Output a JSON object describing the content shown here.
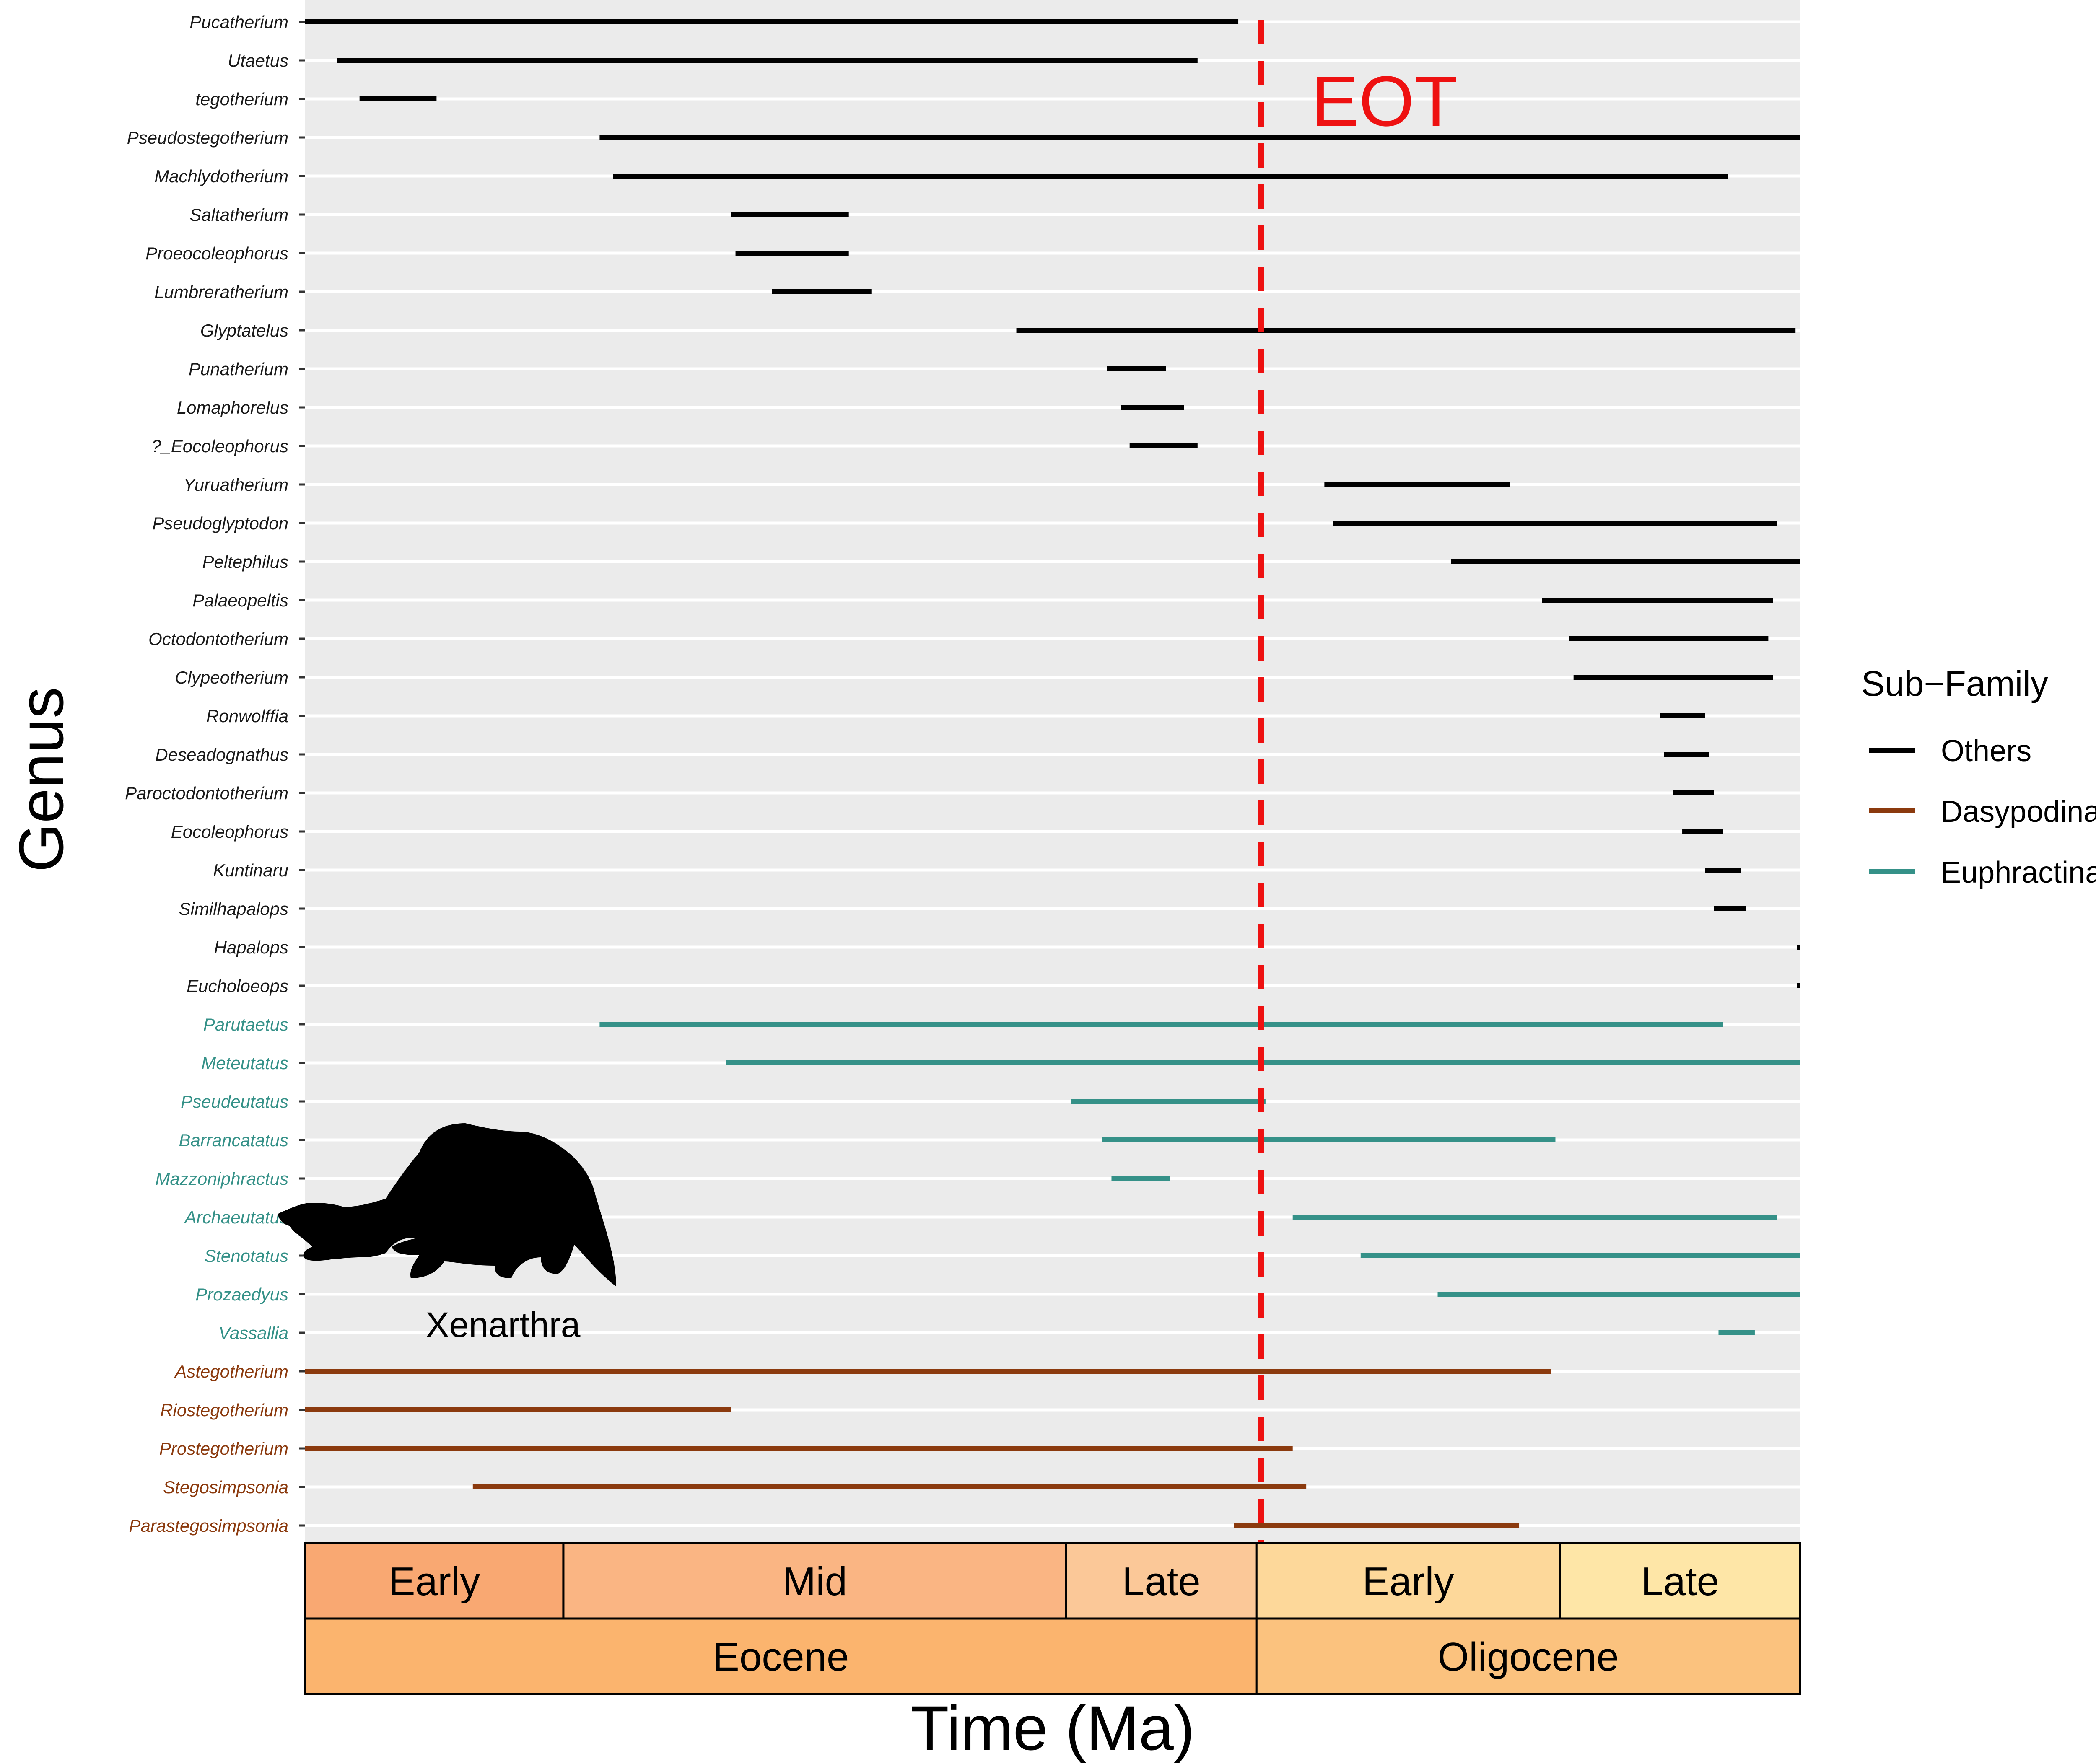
{
  "chart_data": {
    "type": "range",
    "xlabel": "Time (Ma)",
    "ylabel": "Genus",
    "x_range": [
      56,
      23
    ],
    "grid": true,
    "legend_position": "right",
    "legend": {
      "title": "Sub−Family",
      "entries": [
        {
          "name": "Others",
          "color": "#000000"
        },
        {
          "name": "Dasypodinae",
          "color": "#8B3A0E"
        },
        {
          "name": "Euphractinae",
          "color": "#359188"
        }
      ]
    },
    "event_line": {
      "label": "EOT",
      "x": 34.9,
      "color": "#EE1111"
    },
    "silhouette_label": "Xenarthra",
    "stages": [
      {
        "label": "Early",
        "start": 56.0,
        "end": 50.3,
        "color": "#F9A872"
      },
      {
        "label": "Mid",
        "start": 50.3,
        "end": 39.2,
        "color": "#FAB583"
      },
      {
        "label": "Late",
        "start": 39.2,
        "end": 35.0,
        "color": "#FBC898"
      },
      {
        "label": "Early",
        "start": 35.0,
        "end": 28.3,
        "color": "#FDD89A"
      },
      {
        "label": "Late",
        "start": 28.3,
        "end": 23.0,
        "color": "#FEE6A7"
      }
    ],
    "epochs": [
      {
        "label": "Eocene",
        "start": 56.0,
        "end": 35.0,
        "color": "#FBB46E"
      },
      {
        "label": "Oligocene",
        "start": 35.0,
        "end": 23.0,
        "color": "#FBC27E"
      }
    ],
    "series": [
      {
        "genus": "Pucatherium",
        "group": "Others",
        "start": 56.0,
        "end": 35.4
      },
      {
        "genus": "Utaetus",
        "group": "Others",
        "start": 55.3,
        "end": 36.3
      },
      {
        "genus": "tegotherium",
        "group": "Others",
        "start": 54.8,
        "end": 53.1
      },
      {
        "genus": "Pseudostegotherium",
        "group": "Others",
        "start": 49.5,
        "end": 23.0
      },
      {
        "genus": "Machlydotherium",
        "group": "Others",
        "start": 49.2,
        "end": 24.6
      },
      {
        "genus": "Saltatherium",
        "group": "Others",
        "start": 46.6,
        "end": 44.0
      },
      {
        "genus": "Proeocoleophorus",
        "group": "Others",
        "start": 46.5,
        "end": 44.0
      },
      {
        "genus": "Lumbreratherium",
        "group": "Others",
        "start": 45.7,
        "end": 43.5
      },
      {
        "genus": "Glyptatelus",
        "group": "Others",
        "start": 40.3,
        "end": 23.1
      },
      {
        "genus": "Punatherium",
        "group": "Others",
        "start": 38.3,
        "end": 37.0
      },
      {
        "genus": "Lomaphorelus",
        "group": "Others",
        "start": 38.0,
        "end": 36.6
      },
      {
        "genus": "?_Eocoleophorus",
        "group": "Others",
        "start": 37.8,
        "end": 36.3
      },
      {
        "genus": "Yuruatherium",
        "group": "Others",
        "start": 33.5,
        "end": 29.4
      },
      {
        "genus": "Pseudoglyptodon",
        "group": "Others",
        "start": 33.3,
        "end": 23.5
      },
      {
        "genus": "Peltephilus",
        "group": "Others",
        "start": 30.7,
        "end": 23.0
      },
      {
        "genus": "Palaeopeltis",
        "group": "Others",
        "start": 28.7,
        "end": 23.6
      },
      {
        "genus": "Octodontotherium",
        "group": "Others",
        "start": 28.1,
        "end": 23.7
      },
      {
        "genus": "Clypeotherium",
        "group": "Others",
        "start": 28.0,
        "end": 23.6
      },
      {
        "genus": "Ronwolffia",
        "group": "Others",
        "start": 26.1,
        "end": 25.1
      },
      {
        "genus": "Deseadognathus",
        "group": "Others",
        "start": 26.0,
        "end": 25.0
      },
      {
        "genus": "Paroctodontotherium",
        "group": "Others",
        "start": 25.8,
        "end": 24.9
      },
      {
        "genus": "Eocoleophorus",
        "group": "Others",
        "start": 25.6,
        "end": 24.7
      },
      {
        "genus": "Kuntinaru",
        "group": "Others",
        "start": 25.1,
        "end": 24.3
      },
      {
        "genus": "Similhapalops",
        "group": "Others",
        "start": 24.9,
        "end": 24.2
      },
      {
        "genus": "Hapalops",
        "group": "Others",
        "start": 23.05,
        "end": 23.0
      },
      {
        "genus": "Eucholoeops",
        "group": "Others",
        "start": 23.05,
        "end": 23.0
      },
      {
        "genus": "Parutaetus",
        "group": "Euphractinae",
        "start": 49.5,
        "end": 24.7
      },
      {
        "genus": "Meteutatus",
        "group": "Euphractinae",
        "start": 46.7,
        "end": 23.0
      },
      {
        "genus": "Pseudeutatus",
        "group": "Euphractinae",
        "start": 39.1,
        "end": 34.8
      },
      {
        "genus": "Barrancatatus",
        "group": "Euphractinae",
        "start": 38.4,
        "end": 28.4
      },
      {
        "genus": "Mazzoniphractus",
        "group": "Euphractinae",
        "start": 38.2,
        "end": 36.9
      },
      {
        "genus": "Archaeutatus",
        "group": "Euphractinae",
        "start": 34.2,
        "end": 23.5
      },
      {
        "genus": "Stenotatus",
        "group": "Euphractinae",
        "start": 32.7,
        "end": 23.0
      },
      {
        "genus": "Prozaedyus",
        "group": "Euphractinae",
        "start": 31.0,
        "end": 23.0
      },
      {
        "genus": "Vassallia",
        "group": "Euphractinae",
        "start": 24.8,
        "end": 24.0
      },
      {
        "genus": "Astegotherium",
        "group": "Dasypodinae",
        "start": 56.0,
        "end": 28.5
      },
      {
        "genus": "Riostegotherium",
        "group": "Dasypodinae",
        "start": 56.0,
        "end": 46.6
      },
      {
        "genus": "Prostegotherium",
        "group": "Dasypodinae",
        "start": 56.0,
        "end": 34.2
      },
      {
        "genus": "Stegosimpsonia",
        "group": "Dasypodinae",
        "start": 52.3,
        "end": 33.9
      },
      {
        "genus": "Parastegosimpsonia",
        "group": "Dasypodinae",
        "start": 35.5,
        "end": 29.2
      }
    ]
  }
}
